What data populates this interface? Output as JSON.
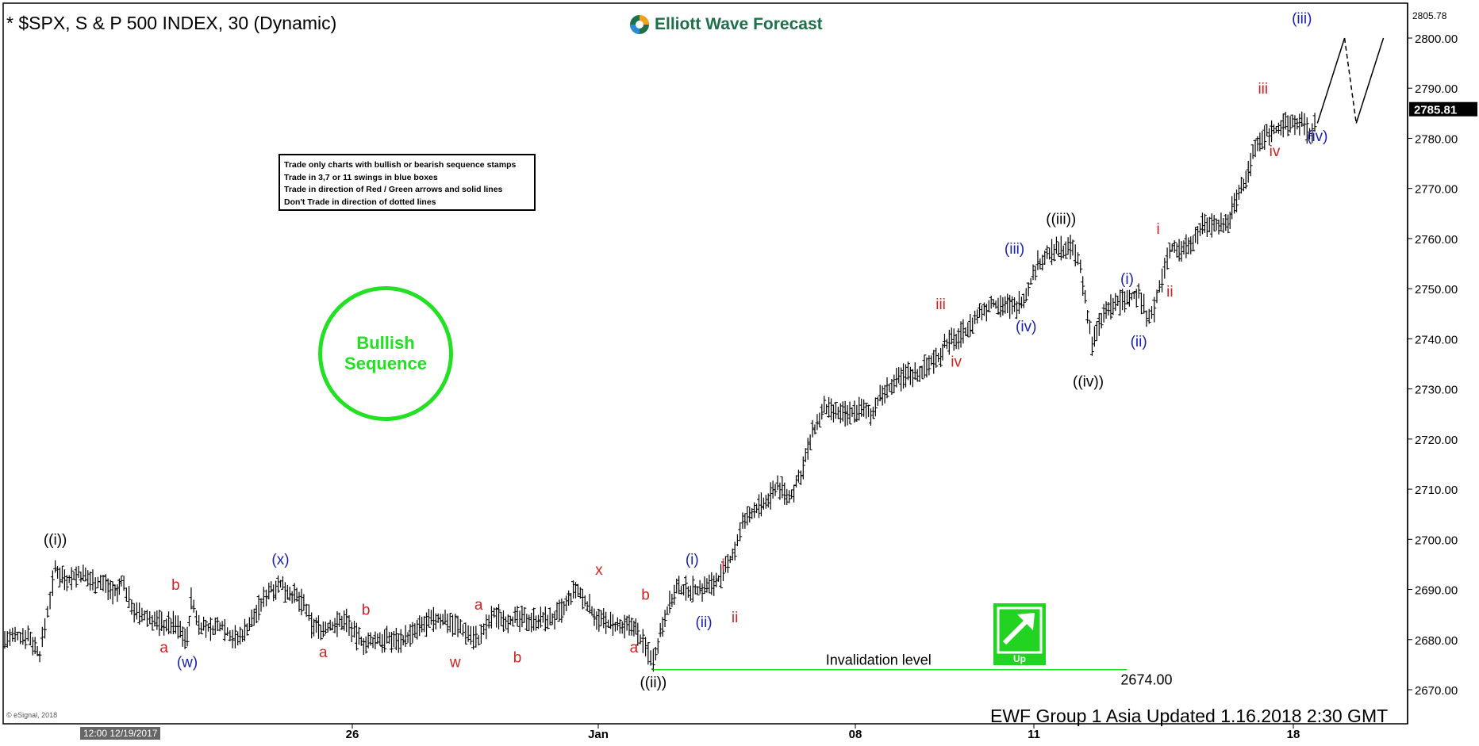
{
  "window": {
    "title": "* $SPX, S & P 500 INDEX, 30 (Dynamic)",
    "logo_text": "Elliott Wave Forecast",
    "updated_text": "EWF Group 1 Asia Updated 1.16.2018 2:30 GMT",
    "esignal_text": "© eSignal, 2018",
    "cursor_time": "12:00 12/19/2017"
  },
  "rules_box": {
    "lines": [
      "Trade only charts with bullish or bearish sequence stamps",
      "Trade in 3,7 or 11 swings in blue boxes",
      "Trade in direction of Red / Green arrows and solid lines",
      "Don't Trade in direction of dotted lines"
    ]
  },
  "stamp": {
    "line1": "Bullish",
    "line2": "Sequence"
  },
  "chart_data": {
    "type": "line",
    "series_style": "ohlc-bars",
    "timeframe": "30",
    "ylim": [
      2665,
      2806
    ],
    "price_ticks": [
      2670,
      2680,
      2690,
      2700,
      2710,
      2720,
      2730,
      2740,
      2750,
      2760,
      2770,
      2780,
      2790,
      2800
    ],
    "price_tick_labels": [
      "2670.00",
      "2680.00",
      "2690.00",
      "2700.00",
      "2710.00",
      "2720.00",
      "2730.00",
      "2740.00",
      "2750.00",
      "2760.00",
      "2770.00",
      "2780.00",
      "2790.00",
      "2800.00"
    ],
    "top_label": "2805.78",
    "last_price": "2785.81",
    "time_labels": [
      "26",
      "Jan",
      "08",
      "11",
      "18"
    ],
    "invalidation": {
      "label": "Invalidation  level",
      "value": 2674,
      "value_label": "2674.00"
    },
    "stamp_arrow": {
      "label": "Up",
      "color": "#22d322"
    },
    "colors": {
      "black": "#000000",
      "blue": "#1a22b0",
      "red": "#d81e1e",
      "green": "#22e022",
      "invalid_line": "#22dd22"
    },
    "price_path": [
      [
        0,
        2680
      ],
      [
        6,
        2681
      ],
      [
        9,
        2677
      ],
      [
        13,
        2694
      ],
      [
        16,
        2692
      ],
      [
        19,
        2693
      ],
      [
        22,
        2692
      ],
      [
        26,
        2691
      ],
      [
        29,
        2689
      ],
      [
        30,
        2692
      ],
      [
        32,
        2688
      ],
      [
        34,
        2685
      ],
      [
        38,
        2684
      ],
      [
        41,
        2683
      ],
      [
        44,
        2683
      ],
      [
        47,
        2680
      ],
      [
        48,
        2688
      ],
      [
        50,
        2683
      ],
      [
        53,
        2682
      ],
      [
        56,
        2683
      ],
      [
        58,
        2681
      ],
      [
        60,
        2680
      ],
      [
        63,
        2683
      ],
      [
        66,
        2687
      ],
      [
        68,
        2690
      ],
      [
        71,
        2691
      ],
      [
        74,
        2689
      ],
      [
        77,
        2687
      ],
      [
        79,
        2683
      ],
      [
        82,
        2682
      ],
      [
        85,
        2683
      ],
      [
        88,
        2684
      ],
      [
        90,
        2681
      ],
      [
        93,
        2679
      ],
      [
        96,
        2680
      ],
      [
        99,
        2680
      ],
      [
        102,
        2680
      ],
      [
        105,
        2681
      ],
      [
        108,
        2683
      ],
      [
        111,
        2684
      ],
      [
        114,
        2684
      ],
      [
        116,
        2683
      ],
      [
        118,
        2682
      ],
      [
        120,
        2681
      ],
      [
        122,
        2680
      ],
      [
        126,
        2685
      ],
      [
        129,
        2684
      ],
      [
        132,
        2684
      ],
      [
        135,
        2684
      ],
      [
        138,
        2684
      ],
      [
        141,
        2684
      ],
      [
        144,
        2686
      ],
      [
        147,
        2690
      ],
      [
        150,
        2687
      ],
      [
        153,
        2684
      ],
      [
        156,
        2683
      ],
      [
        159,
        2682
      ],
      [
        162,
        2683
      ],
      [
        163,
        2681
      ],
      [
        167,
        2676
      ],
      [
        170,
        2685
      ],
      [
        173,
        2690
      ],
      [
        176,
        2690
      ],
      [
        179,
        2690
      ],
      [
        182,
        2691
      ],
      [
        185,
        2693
      ],
      [
        188,
        2698
      ],
      [
        190,
        2703
      ],
      [
        193,
        2706
      ],
      [
        196,
        2707
      ],
      [
        199,
        2711
      ],
      [
        202,
        2708
      ],
      [
        205,
        2713
      ],
      [
        208,
        2721
      ],
      [
        211,
        2726
      ],
      [
        214,
        2725
      ],
      [
        217,
        2725
      ],
      [
        220,
        2726
      ],
      [
        223,
        2725
      ],
      [
        226,
        2729
      ],
      [
        229,
        2731
      ],
      [
        232,
        2733
      ],
      [
        235,
        2733
      ],
      [
        238,
        2735
      ],
      [
        241,
        2737
      ],
      [
        242,
        2739
      ],
      [
        245,
        2740
      ],
      [
        248,
        2742
      ],
      [
        251,
        2745
      ],
      [
        254,
        2747
      ],
      [
        257,
        2747
      ],
      [
        260,
        2746
      ],
      [
        263,
        2749
      ],
      [
        266,
        2755
      ],
      [
        269,
        2757
      ],
      [
        272,
        2758
      ],
      [
        275,
        2758
      ],
      [
        277,
        2754
      ],
      [
        280,
        2739
      ],
      [
        283,
        2745
      ],
      [
        286,
        2747
      ],
      [
        289,
        2748
      ],
      [
        292,
        2749
      ],
      [
        294,
        2745
      ],
      [
        296,
        2746
      ],
      [
        300,
        2758
      ],
      [
        303,
        2758
      ],
      [
        306,
        2760
      ],
      [
        309,
        2763
      ],
      [
        312,
        2763
      ],
      [
        315,
        2763
      ],
      [
        316,
        2766
      ],
      [
        319,
        2771
      ],
      [
        322,
        2778
      ],
      [
        325,
        2781
      ],
      [
        328,
        2782
      ],
      [
        331,
        2783
      ],
      [
        334,
        2783
      ],
      [
        336,
        2781
      ],
      [
        338,
        2783
      ]
    ],
    "projection": [
      [
        338,
        2783
      ],
      [
        345,
        2800
      ],
      [
        348,
        2783
      ],
      [
        355,
        2800
      ]
    ],
    "wave_labels": [
      {
        "text": "((i))",
        "x": 13,
        "y": 2698,
        "color": "black"
      },
      {
        "text": "(w)",
        "x": 47,
        "y": 2677,
        "color": "blue",
        "below": true
      },
      {
        "text": "(x)",
        "x": 71,
        "y": 2694,
        "color": "blue"
      },
      {
        "text": "a",
        "x": 41,
        "y": 2680,
        "color": "red",
        "below": true
      },
      {
        "text": "b",
        "x": 44,
        "y": 2689,
        "color": "red"
      },
      {
        "text": "a",
        "x": 82,
        "y": 2679,
        "color": "red",
        "below": true
      },
      {
        "text": "b",
        "x": 93,
        "y": 2684,
        "color": "red"
      },
      {
        "text": "w",
        "x": 116,
        "y": 2677,
        "color": "red",
        "below": true
      },
      {
        "text": "a",
        "x": 122,
        "y": 2685,
        "color": "red"
      },
      {
        "text": "b",
        "x": 132,
        "y": 2678,
        "color": "red",
        "below": true
      },
      {
        "text": "x",
        "x": 153,
        "y": 2692,
        "color": "red"
      },
      {
        "text": "a",
        "x": 162,
        "y": 2680,
        "color": "red",
        "below": true
      },
      {
        "text": "b",
        "x": 165,
        "y": 2687,
        "color": "red"
      },
      {
        "text": "((ii))",
        "x": 167,
        "y": 2673,
        "color": "black",
        "below": true
      },
      {
        "text": "(i)",
        "x": 177,
        "y": 2694,
        "color": "blue"
      },
      {
        "text": "(ii)",
        "x": 180,
        "y": 2685,
        "color": "blue",
        "below": true
      },
      {
        "text": "i",
        "x": 185,
        "y": 2693,
        "color": "red"
      },
      {
        "text": "ii",
        "x": 188,
        "y": 2686,
        "color": "red",
        "below": true
      },
      {
        "text": "iii",
        "x": 241,
        "y": 2745,
        "color": "red"
      },
      {
        "text": "iv",
        "x": 245,
        "y": 2737,
        "color": "red",
        "below": true
      },
      {
        "text": "(iii)",
        "x": 260,
        "y": 2756,
        "color": "blue"
      },
      {
        "text": "(iv)",
        "x": 263,
        "y": 2744,
        "color": "blue",
        "below": true
      },
      {
        "text": "((iii))",
        "x": 272,
        "y": 2762,
        "color": "black"
      },
      {
        "text": "((iv))",
        "x": 279,
        "y": 2733,
        "color": "black",
        "below": true
      },
      {
        "text": "(i)",
        "x": 289,
        "y": 2750,
        "color": "blue"
      },
      {
        "text": "(ii)",
        "x": 292,
        "y": 2741,
        "color": "blue",
        "below": true
      },
      {
        "text": "i",
        "x": 297,
        "y": 2760,
        "color": "red"
      },
      {
        "text": "ii",
        "x": 300,
        "y": 2751,
        "color": "red",
        "below": true
      },
      {
        "text": "iii",
        "x": 324,
        "y": 2788,
        "color": "red"
      },
      {
        "text": "iv",
        "x": 327,
        "y": 2779,
        "color": "red",
        "below": true
      },
      {
        "text": "(iii)",
        "x": 334,
        "y": 2802,
        "color": "blue"
      },
      {
        "text": "(iv)",
        "x": 338,
        "y": 2782,
        "color": "blue",
        "below": true
      }
    ]
  }
}
